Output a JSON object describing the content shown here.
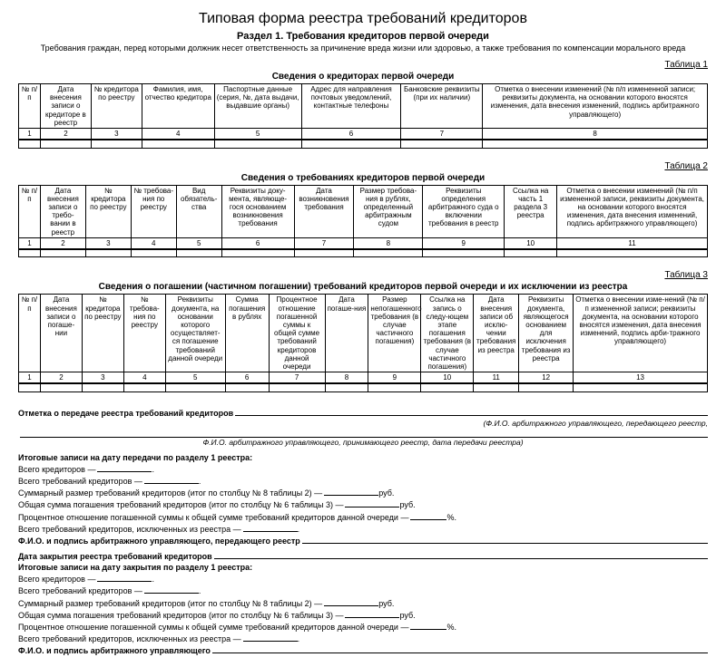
{
  "title": "Типовая форма реестра требований кредиторов",
  "section": "Раздел 1. Требования кредиторов первой очереди",
  "subtitle": "Требования граждан, перед которыми должник несет ответственность за причинение вреда жизни или здоровью,\nа также требования по компенсации морального вреда",
  "tables": {
    "t1": {
      "label": "Таблица 1",
      "title": "Сведения о кредиторах первой очереди",
      "widths": [
        24,
        56,
        56,
        80,
        96,
        110,
        90,
        248
      ],
      "headers": [
        "№ п/п",
        "Дата внесения записи о кредиторе в реестр",
        "№ кредитора по реестру",
        "Фамилия, имя, отчество кредитора",
        "Паспортные данные (серия, №, дата выдачи, выдавшие органы)",
        "Адрес для направления почтовых уведомлений, контактные телефоны",
        "Банковские реквизиты (при их наличии)",
        "Отметка о внесении изменений (№ п/п измененной записи; реквизиты документа, на основании которого вносятся изменения, дата внесения изменений, подпись арбитражного управляющего)"
      ],
      "nums": [
        "1",
        "2",
        "3",
        "4",
        "5",
        "6",
        "7",
        "8"
      ]
    },
    "t2": {
      "label": "Таблица 2",
      "title": "Сведения о требованиях кредиторов первой очереди",
      "widths": [
        24,
        50,
        50,
        50,
        50,
        80,
        66,
        76,
        90,
        58,
        166
      ],
      "headers": [
        "№ п/п",
        "Дата внесения записи о требо-вании в реестр",
        "№ кредитора по реестру",
        "№ требова-ния по реестру",
        "Вид обязатель-ства",
        "Реквизиты доку-мента, являюще-гося основанием возникновения требования",
        "Дата возникновения требования",
        "Размер требова-ния в рублях, определенный арбитражным судом",
        "Реквизиты определения арбитражного суда о включении требования в реестр",
        "Ссылка на часть 1 раздела 3 реестра",
        "Отметка о внесении изменений (№ п/п измененной записи, реквизиты документа, на основании которого вносятся изменения, дата внесения изменений, подпись арбитражного управляющего)"
      ],
      "nums": [
        "1",
        "2",
        "3",
        "4",
        "5",
        "6",
        "7",
        "8",
        "9",
        "10",
        "11"
      ]
    },
    "t3": {
      "label": "Таблица 3",
      "title": "Сведения о погашении (частичном погашении) требований кредиторов первой очереди и их исключении из реестра",
      "widths": [
        24,
        46,
        46,
        46,
        66,
        48,
        62,
        48,
        58,
        58,
        50,
        60,
        148
      ],
      "headers": [
        "№ п/п",
        "Дата внесения записи о погаше-нии",
        "№ кредитора по реестру",
        "№ требова-ния по реестру",
        "Реквизиты документа, на основании которого осуществляет-ся погашение требований данной очереди",
        "Сумма погашения в рублях",
        "Процентное отношение погашенной суммы к общей сумме требований кредиторов данной очереди",
        "Дата погаше-ния",
        "Размер непогашенного требования (в случае частичного погашения)",
        "Ссылка на запись о следу-ющем этапе погашения требования (в случае частичного погашения)",
        "Дата внесения записи об исклю-чении требования из реестра",
        "Реквизиты документа, являющегося основанием для исключения требования из реестра",
        "Отметка о внесении изме-нений (№ п/п измененной записи; реквизиты документа, на основании которого вносятся изменения, дата внесения изменений, подпись арби-тражного управляющего)"
      ],
      "nums": [
        "1",
        "2",
        "3",
        "4",
        "5",
        "6",
        "7",
        "8",
        "9",
        "10",
        "11",
        "12",
        "13"
      ]
    }
  },
  "summary": {
    "l0": "Отметка о передаче реестра требований кредиторов",
    "l0r": "(Ф.И.О. арбитражного управляющего, передающего реестр,",
    "l0c": "Ф.И.О. арбитражного управляющего, принимающего реестр, дата передачи реестра)",
    "block1_title": "Итоговые записи на дату передачи по разделу 1 реестра:",
    "block2_open": "Дата закрытия реестра требований кредиторов",
    "block2_title": "Итоговые записи на дату закрытия по разделу 1 реестра:",
    "a": "Всего кредиторов —",
    "b": "Всего требований кредиторов —",
    "c1": "Суммарный размер требований кредиторов (итог по столбцу № 8 таблицы 2) —",
    "c2": " руб.",
    "d1": "Общая сумма погашения требований кредиторов (итог по столбцу № 6 таблицы 3) —",
    "d2": " руб.",
    "e1": "Процентное отношение погашенной суммы к общей сумме требований кредиторов данной очереди —",
    "e2": " %.",
    "f": "Всего требований кредиторов, исключенных из реестра —",
    "sig1": "Ф.И.О. и подпись арбитражного управляющего, передающего реестр",
    "sig2": "Ф.И.О. и подпись арбитражного управляющего"
  }
}
